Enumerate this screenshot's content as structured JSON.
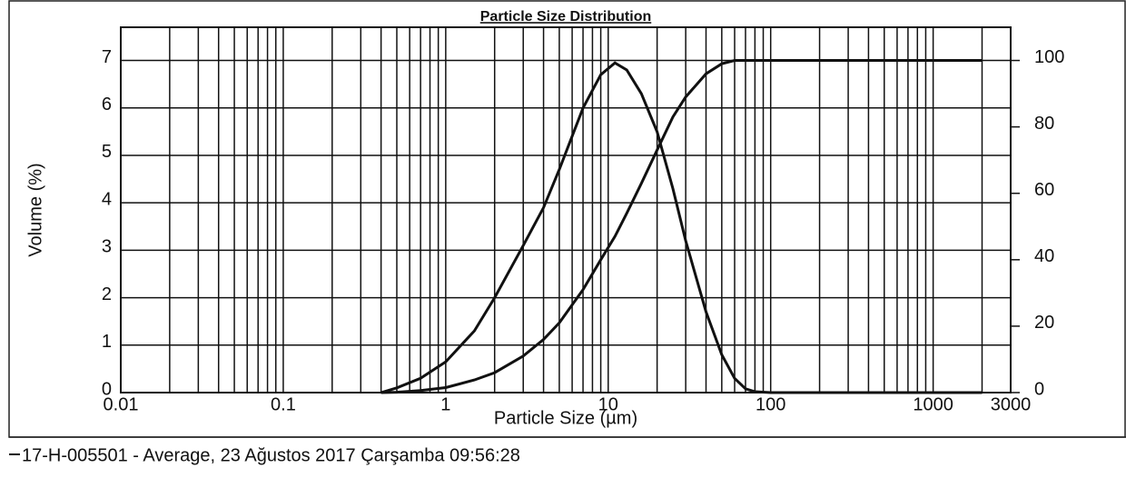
{
  "chart_data": {
    "type": "line",
    "title": "Particle Size Distribution",
    "x_label": "Particle Size (µm)",
    "y_label": "Volume (%)",
    "x": [
      0.4,
      0.5,
      0.7,
      1,
      1.5,
      2,
      3,
      4,
      5,
      7,
      9,
      11,
      13,
      16,
      20,
      25,
      30,
      40,
      50,
      60,
      70,
      80,
      100,
      200,
      2000
    ],
    "series": [
      {
        "name": "17-H-005501 - Average, 23 Ağustos 2017 Çarşamba 09:56:28",
        "color": "#111111",
        "values": [
          0,
          0.1,
          0.3,
          0.65,
          1.3,
          2.0,
          3.1,
          3.9,
          4.7,
          6.0,
          6.7,
          6.95,
          6.8,
          6.3,
          5.5,
          4.3,
          3.2,
          1.7,
          0.8,
          0.3,
          0.08,
          0.02,
          0,
          0,
          0
        ]
      },
      {
        "color": "#111111",
        "axis": "y2",
        "values": [
          0,
          0.1,
          0.6,
          1.5,
          3.8,
          6,
          11,
          16,
          21,
          31,
          40,
          47,
          54,
          63,
          73,
          83,
          89,
          96,
          99,
          100,
          100,
          100,
          100,
          100,
          100
        ]
      }
    ],
    "x_log": true,
    "xlim": [
      0.01,
      3000
    ],
    "xticks": [
      0.01,
      0.1,
      1,
      10,
      100,
      1000,
      3000
    ],
    "ylim": [
      0,
      7.7
    ],
    "yticks": [
      0,
      1,
      2,
      3,
      4,
      5,
      6,
      7
    ],
    "y2lim": [
      0,
      110
    ],
    "y2ticks": [
      0,
      20,
      40,
      60,
      80,
      100
    ],
    "grid": true,
    "minor_grid": true,
    "legend": "bottom-left"
  }
}
